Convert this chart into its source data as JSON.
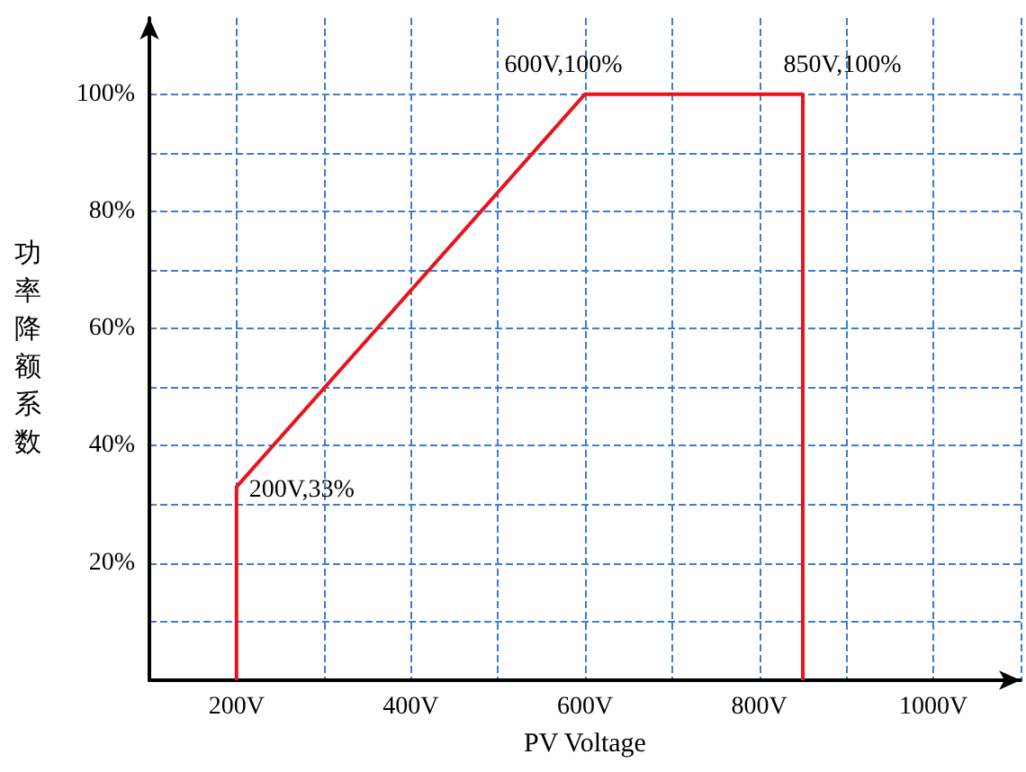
{
  "chart_data": {
    "type": "line",
    "xlabel": "PV Voltage",
    "ylabel": "功率降额系数",
    "x": [
      200,
      200,
      600,
      850,
      850
    ],
    "series": [
      {
        "color": "#e8141c",
        "values": [
          0,
          33,
          100,
          100,
          0
        ]
      }
    ],
    "xlim": [
      100,
      1100
    ],
    "xticks": [
      {
        "value": 100,
        "label": null
      },
      {
        "value": 200,
        "label": "200V"
      },
      {
        "value": 300,
        "label": null
      },
      {
        "value": 400,
        "label": "400V"
      },
      {
        "value": 500,
        "label": null
      },
      {
        "value": 600,
        "label": "600V"
      },
      {
        "value": 700,
        "label": null
      },
      {
        "value": 800,
        "label": "800V"
      },
      {
        "value": 900,
        "label": null
      },
      {
        "value": 1000,
        "label": "1000V"
      },
      {
        "value": 1100,
        "label": null
      }
    ],
    "ylim": [
      0,
      113
    ],
    "yticks": [
      {
        "value": 10,
        "label": null
      },
      {
        "value": 20,
        "label": "20%"
      },
      {
        "value": 30,
        "label": null
      },
      {
        "value": 40,
        "label": "40%"
      },
      {
        "value": 50,
        "label": null
      },
      {
        "value": 60,
        "label": "60%"
      },
      {
        "value": 70,
        "label": null
      },
      {
        "value": 80,
        "label": "80%"
      },
      {
        "value": 90,
        "label": null
      },
      {
        "value": 100,
        "label": "100%"
      }
    ],
    "grid": true,
    "marker": "none",
    "line_style": "solid",
    "annotations": [
      {
        "text": "200V,33%",
        "x": 200,
        "y": 33
      },
      {
        "text": "600V,100%",
        "x": 600,
        "y": 100
      },
      {
        "text": "850V,100%",
        "x": 850,
        "y": 100
      }
    ]
  }
}
